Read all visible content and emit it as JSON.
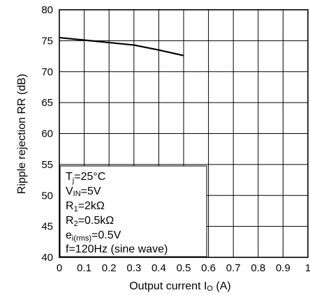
{
  "chart_data": {
    "type": "line",
    "xlabel": "Output current I",
    "xlabel_sub": "O",
    "xlabel_unit": " (A)",
    "ylabel": "Ripple rejection RR (dB)",
    "xlim": [
      0,
      1
    ],
    "ylim": [
      40,
      80
    ],
    "grid": true,
    "x_ticks": [
      "0",
      "0.1",
      "0.2",
      "0.3",
      "0.4",
      "0.5",
      "0.6",
      "0.7",
      "0.8",
      "0.9",
      "1"
    ],
    "y_ticks": [
      "40",
      "45",
      "50",
      "55",
      "60",
      "65",
      "70",
      "75",
      "80"
    ],
    "series": [
      {
        "x": [
          0,
          0.1,
          0.2,
          0.3,
          0.4,
          0.5
        ],
        "y": [
          75.5,
          75.1,
          74.7,
          74.3,
          73.5,
          72.6
        ]
      }
    ],
    "conditions": {
      "tj": {
        "main": "T",
        "sub": "j",
        "rest": "=25°C"
      },
      "vin": {
        "main": "V",
        "sub": "IN",
        "rest": "=5V"
      },
      "r1": {
        "main": "R",
        "sub": "1",
        "rest": "=2kΩ"
      },
      "r2": {
        "main": "R",
        "sub": "2",
        "rest": "=0.5kΩ"
      },
      "ei": {
        "main": "e",
        "sub": "i(rms)",
        "rest": "=0.5V"
      },
      "freq": {
        "main": "f=120Hz (sine wave)"
      }
    }
  }
}
